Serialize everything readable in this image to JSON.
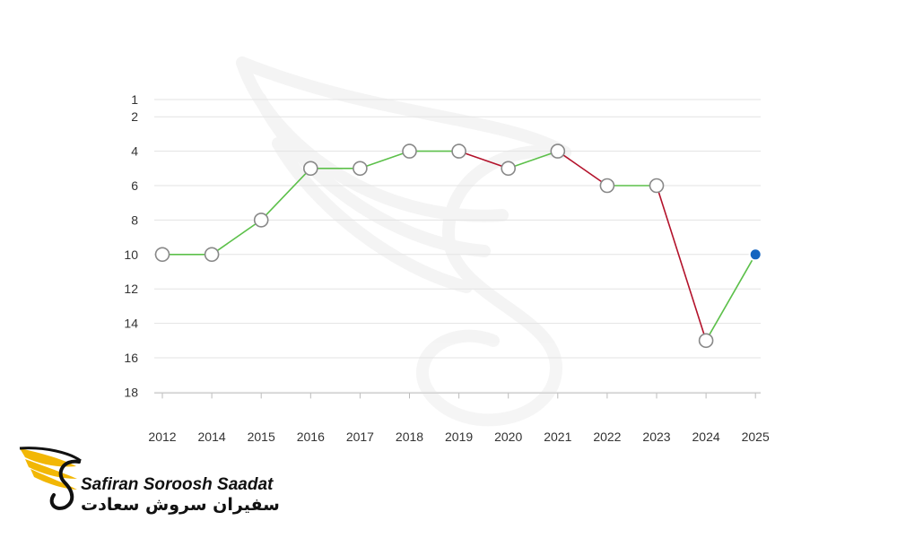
{
  "chart_data": {
    "type": "line",
    "title": "",
    "xlabel": "",
    "ylabel": "",
    "x": [
      "2012",
      "2014",
      "2015",
      "2016",
      "2017",
      "2018",
      "2019",
      "2020",
      "2021",
      "2022",
      "2023",
      "2024",
      "2025"
    ],
    "series": [
      {
        "values": [
          10,
          10,
          8,
          5,
          5,
          4,
          4,
          5,
          4,
          6,
          6,
          15,
          10
        ]
      }
    ],
    "y_ticks": [
      1,
      2,
      4,
      6,
      8,
      10,
      12,
      14,
      16,
      18
    ],
    "ylim": [
      1,
      18
    ],
    "y_inverted": true,
    "grid": true,
    "legend": "none",
    "colors": {
      "rank_up": "#5cc04a",
      "rank_down": "#b3122b",
      "marker_fill": "#ffffff",
      "marker_stroke": "#888888",
      "latest_marker": "#1565c0",
      "grid": "#e3e3e3"
    }
  },
  "logo": {
    "name_en": "Safiran Soroosh Saadat",
    "name_fa": "سفیران سروش سعادت"
  }
}
